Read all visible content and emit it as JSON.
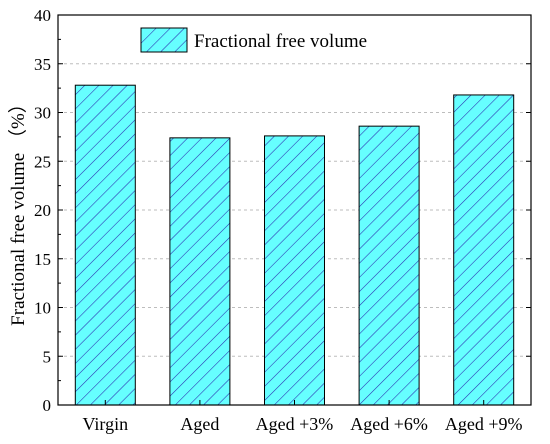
{
  "colors": {
    "bar_fill": "#66ffff",
    "hatch": "#2b2bb0",
    "axis": "#000000",
    "grid": "#bdbdbd"
  },
  "chart_data": {
    "type": "bar",
    "title": "",
    "xlabel": "",
    "ylabel": "Fractional free volume （%）",
    "categories": [
      "Virgin",
      "Aged",
      "Aged +3%",
      "Aged +6%",
      "Aged +9%"
    ],
    "series": [
      {
        "name": "Fractional free volume",
        "values": [
          32.8,
          27.4,
          27.6,
          28.6,
          31.8
        ]
      }
    ],
    "ylim": [
      0,
      40
    ],
    "yticks": [
      0,
      5,
      10,
      15,
      20,
      25,
      30,
      35,
      40
    ],
    "grid": "horizontal dashed",
    "legend": "top-left",
    "pattern": "diagonal hatch"
  }
}
